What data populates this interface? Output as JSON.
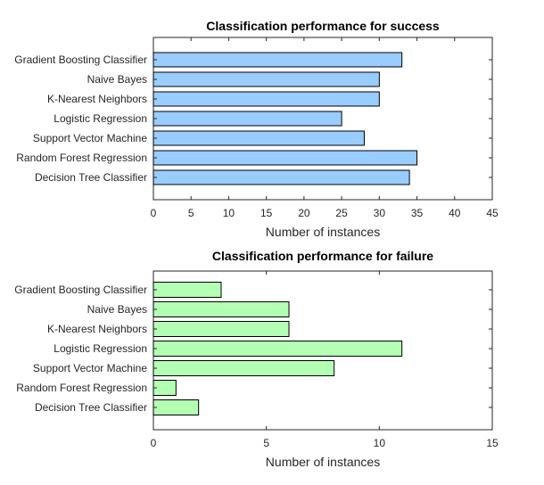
{
  "chart_data": [
    {
      "type": "bar",
      "orientation": "horizontal",
      "title": "Classification performance for success",
      "xlabel": "Number of instances",
      "ylabel": "",
      "categories": [
        "Gradient Boosting Classifier",
        "Naive Bayes",
        "K-Nearest Neighbors",
        "Logistic Regression",
        "Support Vector Machine",
        "Random Forest Regression",
        "Decision Tree Classifier"
      ],
      "values": [
        33,
        30,
        30,
        25,
        28,
        35,
        34
      ],
      "xlim": [
        0,
        45
      ],
      "xticks": [
        0,
        5,
        10,
        15,
        20,
        25,
        30,
        35,
        40,
        45
      ],
      "bar_color": "#99ccff",
      "grid": false
    },
    {
      "type": "bar",
      "orientation": "horizontal",
      "title": "Classification performance for failure",
      "xlabel": "Number of instances",
      "ylabel": "",
      "categories": [
        "Gradient Boosting Classifier",
        "Naive Bayes",
        "K-Nearest Neighbors",
        "Logistic Regression",
        "Support Vector Machine",
        "Random Forest Regression",
        "Decision Tree Classifier"
      ],
      "values": [
        3,
        6,
        6,
        11,
        8,
        1,
        2
      ],
      "xlim": [
        0,
        15
      ],
      "xticks": [
        0,
        5,
        10,
        15
      ],
      "bar_color": "#b3ffb3",
      "grid": false
    }
  ]
}
